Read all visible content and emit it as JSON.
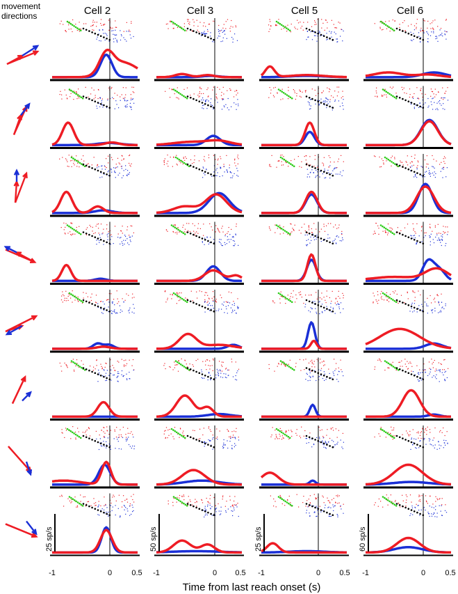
{
  "figure": {
    "corner_label_line1": "movement",
    "corner_label_line2": "directions",
    "xlabel": "Time from last reach onset (s)",
    "x_ticks": [
      "-1",
      "0",
      "0.5"
    ]
  },
  "colors": {
    "red": "#ee1c24",
    "blue": "#1a2fd6",
    "green": "#2ecc1a",
    "black": "#000000"
  },
  "chart_data": {
    "type": "line",
    "x_range_s": [
      -1,
      0.5
    ],
    "columns": [
      {
        "title": "Cell 2",
        "scale_label": "25 sp/s"
      },
      {
        "title": "Cell 3",
        "scale_label": "50 sp/s"
      },
      {
        "title": "Cell 5",
        "scale_label": "25 sp/s"
      },
      {
        "title": "Cell 6",
        "scale_label": "60 sp/s"
      }
    ],
    "rows": [
      {
        "direction": 1,
        "series": [
          [
            {
              "red": [
                [
                  0.25,
                  0.25,
                  0.55
                ],
                [
                  -0.05,
                  0.12,
                  0.75
                ]
              ],
              "blue": [
                [
                  -0.05,
                  0.1,
                  0.85
                ]
              ]
            },
            {
              "red": [
                [
                  -0.55,
                  0.12,
                  0.12
                ],
                [
                  -0.1,
                  0.12,
                  0.08
                ]
              ],
              "blue": [
                [
                  -0.05,
                  0.15,
                  0.05
                ]
              ]
            },
            {
              "red": [
                [
                  -0.85,
                  0.08,
                  0.4
                ],
                [
                  -0.2,
                  0.3,
                  0.08
                ]
              ],
              "blue": [
                [
                  -0.2,
                  0.3,
                  0.05
                ]
              ]
            },
            {
              "red": [
                [
                  -0.6,
                  0.25,
                  0.18
                ],
                [
                  0.1,
                  0.2,
                  0.1
                ]
              ],
              "blue": [
                [
                  0.2,
                  0.2,
                  0.18
                ]
              ]
            }
          ]
        ]
      },
      {
        "direction": 2,
        "series": [
          [
            {
              "red": [
                [
                  -0.72,
                  0.1,
                  0.85
                ],
                [
                  0.05,
                  0.12,
                  0.1
                ]
              ],
              "blue": [
                [
                  0.0,
                  0.2,
                  0.08
                ]
              ]
            },
            {
              "red": [
                [
                  -0.4,
                  0.3,
                  0.12
                ],
                [
                  0.1,
                  0.2,
                  0.15
                ]
              ],
              "blue": [
                [
                  0.0,
                  0.12,
                  0.35
                ]
              ]
            },
            {
              "red": [
                [
                  -0.15,
                  0.08,
                  0.85
                ]
              ],
              "blue": [
                [
                  -0.15,
                  0.08,
                  0.5
                ]
              ]
            },
            {
              "red": [
                [
                  0.12,
                  0.15,
                  0.9
                ]
              ],
              "blue": [
                [
                  0.12,
                  0.15,
                  0.95
                ]
              ]
            }
          ]
        ]
      },
      {
        "direction": 3,
        "series": [
          [
            {
              "red": [
                [
                  -0.75,
                  0.1,
                  0.8
                ],
                [
                  -0.2,
                  0.1,
                  0.25
                ]
              ],
              "blue": [
                [
                  -0.1,
                  0.15,
                  0.1
                ]
              ]
            },
            {
              "red": [
                [
                  -0.5,
                  0.2,
                  0.25
                ],
                [
                  0.05,
                  0.18,
                  0.7
                ]
              ],
              "blue": [
                [
                  0.1,
                  0.18,
                  0.75
                ]
              ]
            },
            {
              "red": [
                [
                  -0.12,
                  0.1,
                  0.8
                ]
              ],
              "blue": [
                [
                  -0.12,
                  0.1,
                  0.7
                ]
              ]
            },
            {
              "red": [
                [
                  0.05,
                  0.15,
                  1.0
                ]
              ],
              "blue": [
                [
                  0.05,
                  0.12,
                  1.1
                ]
              ]
            }
          ]
        ]
      },
      {
        "direction": 4,
        "series": [
          [
            {
              "red": [
                [
                  -0.75,
                  0.08,
                  0.6
                ]
              ],
              "blue": [
                [
                  -0.15,
                  0.1,
                  0.08
                ]
              ]
            },
            {
              "red": [
                [
                  0.0,
                  0.15,
                  0.4
                ],
                [
                  0.4,
                  0.1,
                  0.2
                ]
              ],
              "blue": [
                [
                  0.0,
                  0.12,
                  0.55
                ]
              ]
            },
            {
              "red": [
                [
                  -0.12,
                  0.07,
                  1.0
                ]
              ],
              "blue": [
                [
                  -0.12,
                  0.08,
                  0.8
                ]
              ]
            },
            {
              "red": [
                [
                  -0.5,
                  0.4,
                  0.15
                ],
                [
                  0.25,
                  0.2,
                  0.45
                ]
              ],
              "blue": [
                [
                  0.1,
                  0.1,
                  0.75
                ],
                [
                  0.3,
                  0.1,
                  0.4
                ]
              ]
            }
          ]
        ]
      },
      {
        "direction": 5,
        "series": [
          [
            {
              "red": [
                [
                  -0.1,
                  0.12,
                  0.08
                ]
              ],
              "blue": [
                [
                  -0.2,
                  0.08,
                  0.2
                ],
                [
                  0.0,
                  0.08,
                  0.15
                ]
              ]
            },
            {
              "red": [
                [
                  -0.45,
                  0.15,
                  0.55
                ],
                [
                  0.1,
                  0.25,
                  0.15
                ]
              ],
              "blue": [
                [
                  0.35,
                  0.1,
                  0.15
                ]
              ]
            },
            {
              "red": [
                [
                  -0.08,
                  0.05,
                  0.3
                ]
              ],
              "blue": [
                [
                  -0.12,
                  0.06,
                  1.0
                ]
              ]
            },
            {
              "red": [
                [
                  -0.4,
                  0.35,
                  0.75
                ]
              ],
              "blue": [
                [
                  0.2,
                  0.15,
                  0.2
                ]
              ]
            }
          ]
        ]
      },
      {
        "direction": 6,
        "series": [
          [
            {
              "red": [
                [
                  -0.1,
                  0.1,
                  0.55
                ]
              ],
              "blue": []
            },
            {
              "red": [
                [
                  -0.5,
                  0.15,
                  0.8
                ],
                [
                  -0.1,
                  0.1,
                  0.35
                ]
              ],
              "blue": [
                [
                  0.1,
                  0.2,
                  0.1
                ]
              ]
            },
            {
              "red": [],
              "blue": [
                [
                  -0.1,
                  0.05,
                  0.45
                ]
              ]
            },
            {
              "red": [
                [
                  -0.2,
                  0.15,
                  1.0
                ]
              ],
              "blue": [
                [
                  0.2,
                  0.1,
                  0.08
                ]
              ]
            }
          ]
        ]
      },
      {
        "direction": 7,
        "series": [
          [
            {
              "red": [
                [
                  -0.05,
                  0.08,
                  0.85
                ],
                [
                  -0.8,
                  0.3,
                  0.15
                ]
              ],
              "blue": [
                [
                  -0.08,
                  0.1,
                  0.75
                ]
              ]
            },
            {
              "red": [
                [
                  -0.35,
                  0.2,
                  0.55
                ]
              ],
              "blue": [
                [
                  -0.2,
                  0.3,
                  0.15
                ]
              ]
            },
            {
              "red": [
                [
                  -0.85,
                  0.15,
                  0.45
                ]
              ],
              "blue": [
                [
                  -0.1,
                  0.05,
                  0.15
                ]
              ]
            },
            {
              "red": [
                [
                  -0.25,
                  0.25,
                  0.75
                ]
              ],
              "blue": [
                [
                  -0.2,
                  0.3,
                  0.1
                ]
              ]
            }
          ]
        ]
      },
      {
        "direction": 8,
        "series": [
          [
            {
              "red": [
                [
                  -0.05,
                  0.1,
                  0.85
                ]
              ],
              "blue": [
                [
                  -0.05,
                  0.08,
                  0.95
                ]
              ]
            },
            {
              "red": [
                [
                  -0.55,
                  0.15,
                  0.45
                ],
                [
                  -0.1,
                  0.12,
                  0.3
                ]
              ],
              "blue": [
                [
                  -0.3,
                  0.4,
                  0.05
                ]
              ]
            },
            {
              "red": [
                [
                  -0.8,
                  0.1,
                  0.35
                ]
              ],
              "blue": [
                [
                  -0.2,
                  0.3,
                  0.05
                ]
              ]
            },
            {
              "red": [
                [
                  -0.25,
                  0.2,
                  0.55
                ]
              ],
              "blue": [
                [
                  -0.25,
                  0.25,
                  0.2
                ]
              ]
            }
          ]
        ]
      }
    ]
  }
}
